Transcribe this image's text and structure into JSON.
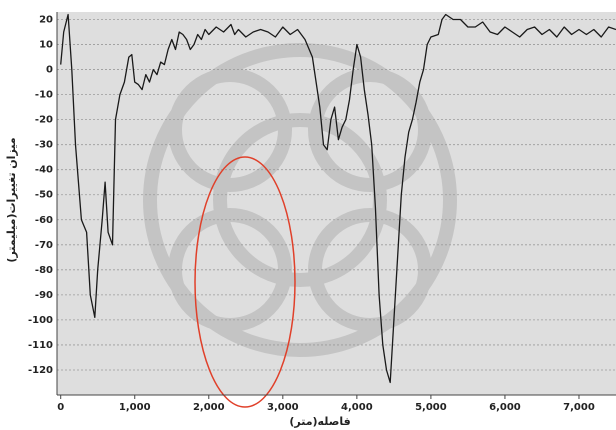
{
  "chart_data": {
    "type": "line",
    "x_label": "فاصله(متر)",
    "y_label": "میزان تغییرات(میلیمتر)",
    "x": [
      0,
      40,
      100,
      150,
      200,
      280,
      350,
      400,
      460,
      500,
      560,
      600,
      640,
      700,
      740,
      800,
      860,
      920,
      960,
      1000,
      1050,
      1100,
      1150,
      1200,
      1250,
      1300,
      1350,
      1400,
      1450,
      1500,
      1550,
      1600,
      1650,
      1700,
      1750,
      1800,
      1850,
      1900,
      1950,
      2000,
      2100,
      2200,
      2300,
      2350,
      2400,
      2500,
      2600,
      2700,
      2800,
      2900,
      3000,
      3100,
      3200,
      3300,
      3400,
      3450,
      3500,
      3550,
      3600,
      3650,
      3700,
      3750,
      3800,
      3850,
      3900,
      3950,
      4000,
      4050,
      4100,
      4150,
      4200,
      4250,
      4300,
      4350,
      4400,
      4450,
      4500,
      4550,
      4600,
      4650,
      4700,
      4750,
      4800,
      4850,
      4900,
      4950,
      5000,
      5100,
      5150,
      5200,
      5300,
      5400,
      5500,
      5600,
      5700,
      5800,
      5900,
      6000,
      6100,
      6200,
      6300,
      6400,
      6500,
      6600,
      6700,
      6800,
      6900,
      7000,
      7100,
      7200,
      7300,
      7400,
      7500
    ],
    "series": [
      {
        "color": "#1a1a1a",
        "values": [
          2,
          15,
          22,
          0,
          -30,
          -60,
          -65,
          -90,
          -99,
          -80,
          -60,
          -45,
          -65,
          -70,
          -20,
          -10,
          -5,
          5,
          6,
          -5,
          -6,
          -8,
          -2,
          -5,
          0,
          -2,
          3,
          2,
          8,
          12,
          8,
          15,
          14,
          12,
          8,
          10,
          14,
          12,
          16,
          14,
          17,
          15,
          18,
          14,
          16,
          13,
          15,
          16,
          15,
          13,
          17,
          14,
          16,
          12,
          5,
          -5,
          -15,
          -30,
          -32,
          -20,
          -15,
          -28,
          -23,
          -20,
          -12,
          0,
          10,
          5,
          -8,
          -18,
          -30,
          -55,
          -90,
          -110,
          -120,
          -125,
          -100,
          -75,
          -50,
          -35,
          -25,
          -20,
          -13,
          -5,
          0,
          10,
          13,
          14,
          20,
          22,
          20,
          20,
          17,
          17,
          19,
          15,
          14,
          17,
          15,
          13,
          16,
          17,
          14,
          16,
          13,
          17,
          14,
          16,
          14,
          16,
          13,
          17,
          16
        ]
      }
    ],
    "xlim": [
      -50,
      7500
    ],
    "ylim": [
      -130,
      23
    ],
    "xticks": [
      0,
      {
        "value": 1000,
        "label": "1,000"
      },
      {
        "value": 2000,
        "label": "2,000"
      },
      {
        "value": 3000,
        "label": "3,000"
      },
      {
        "value": 4000,
        "label": "4,000"
      },
      {
        "value": 5000,
        "label": "5,000"
      },
      {
        "value": 6000,
        "label": "6,000"
      },
      {
        "value": 7000,
        "label": "7,000"
      }
    ],
    "yticks": [
      20,
      10,
      0,
      -10,
      -20,
      -30,
      -40,
      -50,
      -60,
      -70,
      -80,
      -90,
      -100,
      -110,
      -120
    ],
    "grid": true
  }
}
